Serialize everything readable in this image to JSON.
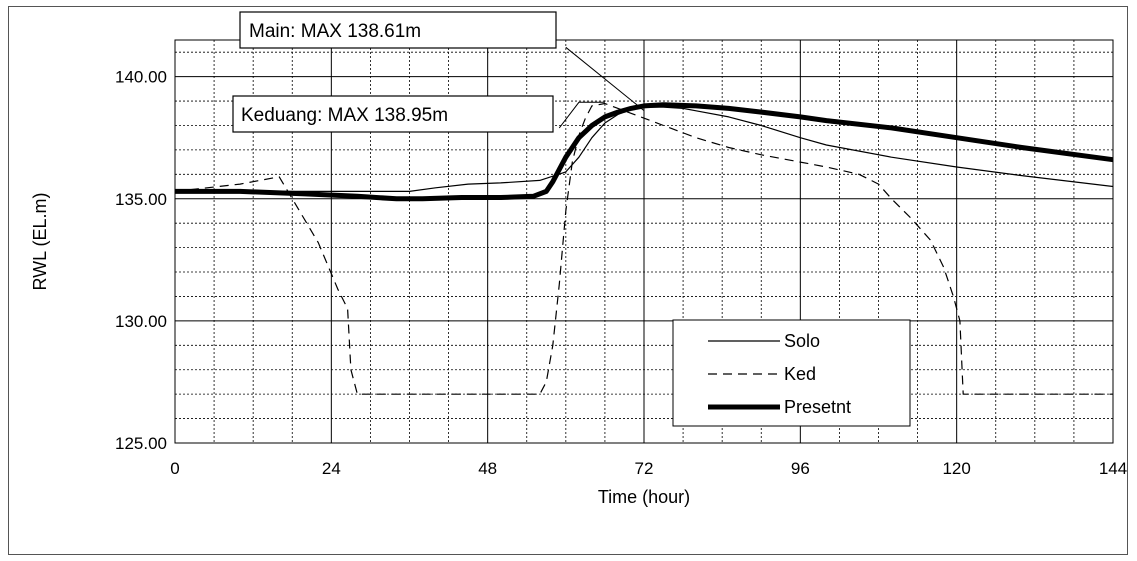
{
  "chart_data": {
    "type": "line",
    "title": "",
    "xlabel": "Time (hour)",
    "ylabel": "RWL (EL.m)",
    "xlim": [
      0,
      144
    ],
    "ylim": [
      125,
      141.5
    ],
    "x_ticks": [
      0,
      24,
      48,
      72,
      96,
      120,
      144
    ],
    "x_tick_labels": [
      "0",
      "24",
      "48",
      "72",
      "96",
      "120",
      "144"
    ],
    "y_ticks": [
      125,
      130,
      135,
      140
    ],
    "y_tick_labels": [
      "125.00",
      "130.00",
      "135.00",
      "140.00"
    ],
    "grid": true,
    "legend": "bottom-right",
    "series": [
      {
        "name": "Solo",
        "style": "thin-solid",
        "x": [
          0,
          10,
          20,
          30,
          36,
          40,
          45,
          50,
          56,
          60,
          62,
          64,
          66,
          68,
          70,
          72,
          75,
          78,
          80,
          85,
          90,
          96,
          100,
          110,
          120,
          130,
          144
        ],
        "y": [
          135.3,
          135.3,
          135.3,
          135.3,
          135.3,
          135.45,
          135.6,
          135.65,
          135.75,
          136.1,
          136.7,
          137.5,
          138.1,
          138.45,
          138.65,
          138.75,
          138.75,
          138.7,
          138.6,
          138.35,
          138.0,
          137.5,
          137.2,
          136.7,
          136.3,
          135.95,
          135.5
        ]
      },
      {
        "name": "Ked",
        "style": "dashed",
        "x": [
          0,
          10,
          16,
          18,
          22,
          25,
          26.5,
          27,
          28,
          56,
          57,
          58,
          59,
          60,
          61,
          62,
          63,
          64,
          66,
          70,
          75,
          80,
          85,
          90,
          96,
          100,
          105,
          108,
          110,
          113,
          116,
          118,
          119.5,
          120.5,
          121,
          130,
          144
        ],
        "y": [
          135.3,
          135.6,
          135.9,
          135.0,
          133.2,
          131.3,
          130.5,
          128.0,
          127.0,
          127.0,
          127.5,
          129.0,
          131.5,
          134.5,
          136.5,
          137.6,
          138.3,
          138.8,
          138.9,
          138.5,
          138.0,
          137.5,
          137.1,
          136.8,
          136.5,
          136.3,
          136.0,
          135.6,
          135.0,
          134.2,
          133.3,
          132.2,
          131.0,
          130.0,
          127.0,
          127.0,
          127.0
        ]
      },
      {
        "name": "Presetnt",
        "style": "thick-solid",
        "x": [
          0,
          10,
          20,
          28,
          34,
          38,
          44,
          50,
          55,
          57,
          58,
          59,
          60,
          61,
          62,
          64,
          66,
          68,
          70,
          72,
          75,
          80,
          85,
          90,
          96,
          100,
          110,
          120,
          130,
          144
        ],
        "y": [
          135.3,
          135.3,
          135.2,
          135.1,
          135.0,
          135.0,
          135.05,
          135.05,
          135.1,
          135.3,
          135.7,
          136.2,
          136.7,
          137.1,
          137.5,
          138.0,
          138.35,
          138.55,
          138.7,
          138.8,
          138.85,
          138.8,
          138.7,
          138.55,
          138.35,
          138.2,
          137.9,
          137.5,
          137.1,
          136.6
        ]
      }
    ],
    "annotations": [
      {
        "text": "Main: MAX 138.61m",
        "leader": [
          [
            60,
            141.2
          ],
          [
            72,
            138.61
          ]
        ]
      },
      {
        "text": "Keduang: MAX 138.95m",
        "leader": [
          [
            59,
            137.9
          ],
          [
            62,
            138.95
          ],
          [
            66,
            138.95
          ]
        ]
      }
    ]
  }
}
